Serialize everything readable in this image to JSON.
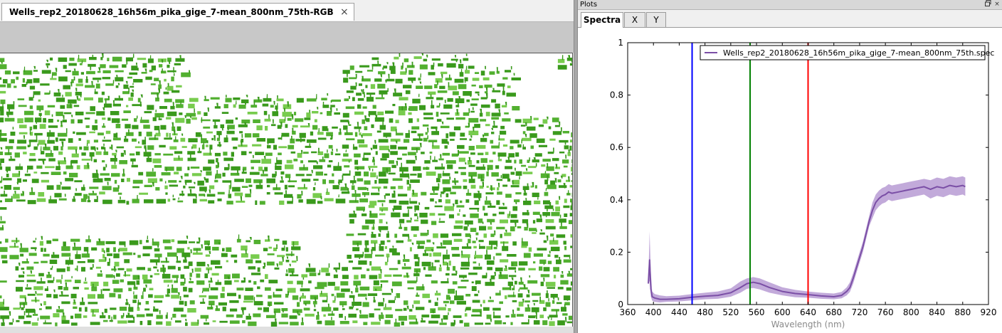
{
  "document_tab": {
    "label": "Wells_rep2_20180628_16h56m_pika_gige_7-mean_800nm_75th-RGB",
    "close": "×"
  },
  "plots_panel": {
    "title": "Plots",
    "float_icon": "restore-icon",
    "close_icon": "close-icon",
    "close_glyph": "×",
    "tabs": [
      {
        "label": "Spectra",
        "active": true
      },
      {
        "label": "X",
        "active": false
      },
      {
        "label": "Y",
        "active": false
      }
    ]
  },
  "chart_data": {
    "type": "line",
    "xlabel": "Wavelength (nm)",
    "ylabel": "",
    "xlim": [
      360,
      920
    ],
    "ylim": [
      0,
      1
    ],
    "xticks": [
      360,
      400,
      440,
      480,
      520,
      560,
      600,
      640,
      680,
      720,
      760,
      800,
      840,
      880,
      920
    ],
    "yticks": [
      0,
      0.2,
      0.4,
      0.6,
      0.8,
      1
    ],
    "ytick_labels": [
      "0",
      "0.2",
      "0.4",
      "0.6",
      "0.8",
      "1"
    ],
    "grid": false,
    "legend_position": "top-right",
    "series": [
      {
        "name": "Wells_rep2_20180628_16h56m_pika_gige_7-mean_800nm_75th.spec",
        "color": "#7b4fa6",
        "band_color": "#b79bd4",
        "x": [
          392,
          394,
          396,
          398,
          402,
          410,
          420,
          440,
          460,
          480,
          500,
          520,
          535,
          545,
          555,
          565,
          580,
          600,
          620,
          640,
          660,
          680,
          692,
          700,
          705,
          710,
          715,
          720,
          725,
          730,
          735,
          740,
          745,
          750,
          755,
          760,
          765,
          770,
          780,
          790,
          800,
          810,
          820,
          830,
          840,
          850,
          860,
          870,
          880,
          884
        ],
        "y": [
          0.08,
          0.17,
          0.06,
          0.03,
          0.025,
          0.02,
          0.02,
          0.022,
          0.028,
          0.032,
          0.035,
          0.045,
          0.065,
          0.08,
          0.085,
          0.08,
          0.065,
          0.05,
          0.042,
          0.038,
          0.033,
          0.03,
          0.035,
          0.05,
          0.065,
          0.1,
          0.14,
          0.18,
          0.22,
          0.27,
          0.32,
          0.36,
          0.39,
          0.405,
          0.415,
          0.42,
          0.43,
          0.425,
          0.43,
          0.435,
          0.44,
          0.445,
          0.45,
          0.44,
          0.45,
          0.445,
          0.455,
          0.45,
          0.455,
          0.45
        ],
        "lower": [
          0.08,
          0.09,
          0.03,
          0.015,
          0.01,
          0.008,
          0.01,
          0.012,
          0.016,
          0.02,
          0.022,
          0.03,
          0.045,
          0.06,
          0.063,
          0.058,
          0.045,
          0.035,
          0.028,
          0.026,
          0.022,
          0.02,
          0.024,
          0.035,
          0.048,
          0.08,
          0.12,
          0.16,
          0.2,
          0.25,
          0.3,
          0.33,
          0.36,
          0.375,
          0.385,
          0.39,
          0.4,
          0.395,
          0.4,
          0.405,
          0.41,
          0.415,
          0.42,
          0.405,
          0.415,
          0.41,
          0.42,
          0.415,
          0.42,
          0.415
        ],
        "upper": [
          0.09,
          0.28,
          0.12,
          0.05,
          0.04,
          0.035,
          0.032,
          0.034,
          0.04,
          0.045,
          0.05,
          0.062,
          0.088,
          0.1,
          0.105,
          0.1,
          0.085,
          0.066,
          0.056,
          0.05,
          0.045,
          0.042,
          0.048,
          0.066,
          0.085,
          0.12,
          0.16,
          0.2,
          0.24,
          0.29,
          0.34,
          0.39,
          0.42,
          0.435,
          0.445,
          0.45,
          0.46,
          0.455,
          0.46,
          0.465,
          0.47,
          0.475,
          0.48,
          0.475,
          0.485,
          0.48,
          0.49,
          0.485,
          0.49,
          0.485
        ]
      }
    ],
    "vertical_lines": [
      {
        "x": 460,
        "color": "#0000ff"
      },
      {
        "x": 550,
        "color": "#008000"
      },
      {
        "x": 640,
        "color": "#ff0000"
      }
    ]
  },
  "rgb_image": {
    "type": "false-color RGB render of plant rows",
    "vegetation_color": "#3a9a1c",
    "vegetation_light": "#78cc4e",
    "background_color": "#ffffff"
  }
}
